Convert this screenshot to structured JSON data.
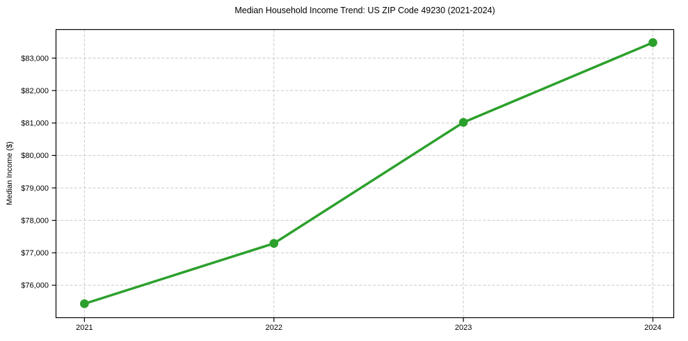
{
  "chart_data": {
    "type": "line",
    "title": "Median Household Income Trend: US ZIP Code 49230 (2021-2024)",
    "xlabel": "",
    "ylabel": "Median Income ($)",
    "x": [
      2021,
      2022,
      2023,
      2024
    ],
    "x_tick_labels": [
      "2021",
      "2022",
      "2023",
      "2024"
    ],
    "y_ticks": [
      76000,
      77000,
      78000,
      79000,
      80000,
      81000,
      82000,
      83000
    ],
    "y_tick_labels": [
      "$76,000",
      "$77,000",
      "$78,000",
      "$79,000",
      "$80,000",
      "$81,000",
      "$82,000",
      "$83,000"
    ],
    "series": [
      {
        "name": "Median Household Income",
        "values": [
          75430,
          77290,
          81020,
          83480
        ]
      }
    ],
    "xlim": [
      2020.85,
      2024.11
    ],
    "ylim": [
      75000,
      83880
    ],
    "grid": true,
    "grid_style": "dashed",
    "legend": false,
    "marker": "circle"
  },
  "colors": {
    "line": "#2ca02c",
    "marker": "#2ca02c",
    "grid": "#c9c9c9",
    "axis": "#000000",
    "background": "#ffffff",
    "text": "#000000"
  }
}
